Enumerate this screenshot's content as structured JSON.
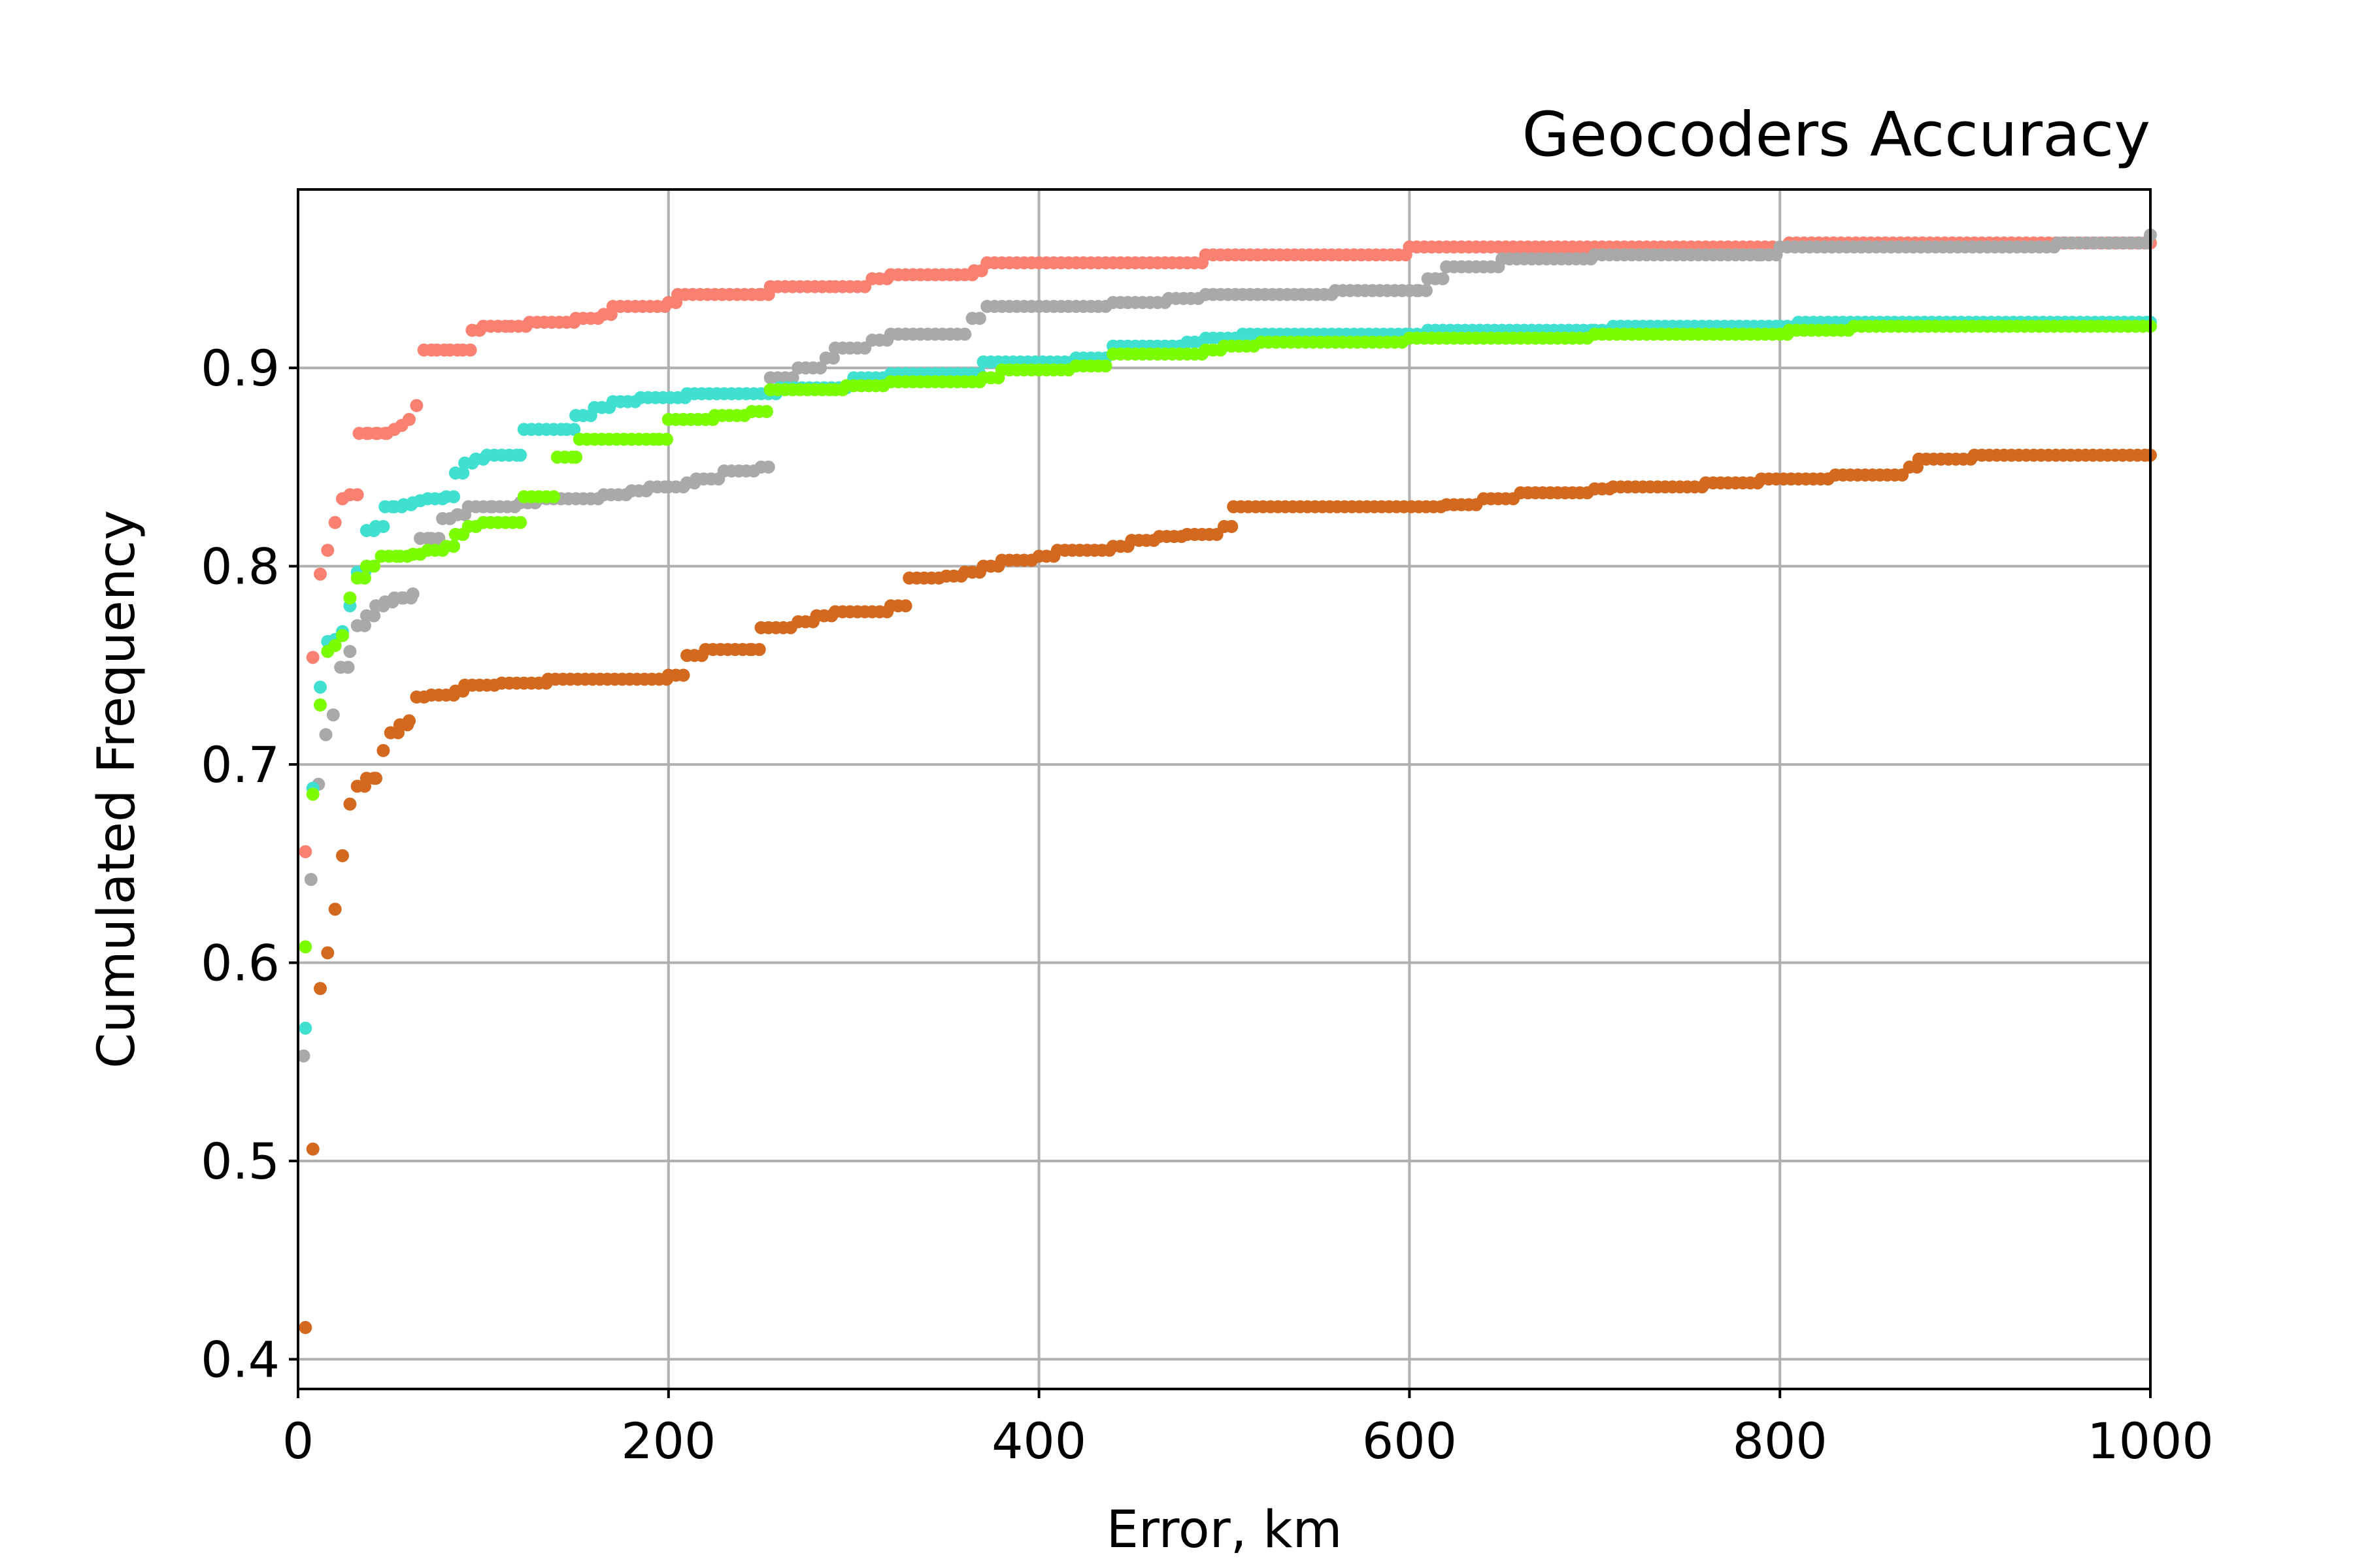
{
  "chart_data": {
    "type": "scatter",
    "title": "Geocoders Accuracy",
    "xlabel": "Error, km",
    "ylabel": "Cumulated Frequency",
    "xlim": [
      0,
      1000
    ],
    "ylim": [
      0.385,
      0.99
    ],
    "xticks": [
      0,
      200,
      400,
      600,
      800,
      1000
    ],
    "xtick_labels": [
      "0",
      "200",
      "400",
      "600",
      "800",
      "1000"
    ],
    "yticks": [
      0.4,
      0.5,
      0.6,
      0.7,
      0.8,
      0.9
    ],
    "ytick_labels": [
      "0.4",
      "0.5",
      "0.6",
      "0.7",
      "0.8",
      "0.9"
    ],
    "grid": true,
    "legend": false,
    "series": [
      {
        "color": "#fa8072",
        "points": [
          [
            4,
            0.656
          ],
          [
            8,
            0.754
          ],
          [
            12,
            0.796
          ],
          [
            16,
            0.808
          ],
          [
            20,
            0.822
          ],
          [
            24,
            0.834
          ],
          [
            28,
            0.836
          ],
          [
            33,
            0.867
          ],
          [
            38,
            0.867
          ],
          [
            43,
            0.867
          ],
          [
            48,
            0.867
          ],
          [
            52,
            0.869
          ],
          [
            56,
            0.871
          ],
          [
            60,
            0.874
          ],
          [
            64,
            0.881
          ],
          [
            68,
            0.909
          ],
          [
            75,
            0.909
          ],
          [
            82,
            0.909
          ],
          [
            89,
            0.909
          ],
          [
            94,
            0.919
          ],
          [
            100,
            0.921
          ],
          [
            115,
            0.921
          ],
          [
            125,
            0.923
          ],
          [
            145,
            0.923
          ],
          [
            150,
            0.925
          ],
          [
            165,
            0.927
          ],
          [
            170,
            0.931
          ],
          [
            190,
            0.931
          ],
          [
            200,
            0.933
          ],
          [
            205,
            0.937
          ],
          [
            250,
            0.937
          ],
          [
            255,
            0.941
          ],
          [
            290,
            0.941
          ],
          [
            310,
            0.945
          ],
          [
            320,
            0.947
          ],
          [
            365,
            0.949
          ],
          [
            372,
            0.953
          ],
          [
            480,
            0.953
          ],
          [
            490,
            0.957
          ],
          [
            590,
            0.957
          ],
          [
            600,
            0.961
          ],
          [
            800,
            0.961
          ],
          [
            805,
            0.963
          ],
          [
            1000,
            0.963
          ]
        ]
      },
      {
        "color": "#a9a9a9",
        "points": [
          [
            3,
            0.553
          ],
          [
            7,
            0.642
          ],
          [
            11,
            0.69
          ],
          [
            15,
            0.715
          ],
          [
            19,
            0.725
          ],
          [
            23,
            0.749
          ],
          [
            28,
            0.757
          ],
          [
            32,
            0.77
          ],
          [
            37,
            0.775
          ],
          [
            42,
            0.78
          ],
          [
            47,
            0.782
          ],
          [
            52,
            0.784
          ],
          [
            57,
            0.784
          ],
          [
            62,
            0.786
          ],
          [
            66,
            0.814
          ],
          [
            72,
            0.814
          ],
          [
            78,
            0.824
          ],
          [
            86,
            0.826
          ],
          [
            92,
            0.83
          ],
          [
            105,
            0.83
          ],
          [
            120,
            0.832
          ],
          [
            130,
            0.834
          ],
          [
            150,
            0.834
          ],
          [
            165,
            0.836
          ],
          [
            180,
            0.838
          ],
          [
            190,
            0.84
          ],
          [
            200,
            0.84
          ],
          [
            210,
            0.842
          ],
          [
            215,
            0.844
          ],
          [
            230,
            0.848
          ],
          [
            250,
            0.85
          ],
          [
            255,
            0.895
          ],
          [
            270,
            0.9
          ],
          [
            285,
            0.905
          ],
          [
            290,
            0.91
          ],
          [
            310,
            0.914
          ],
          [
            320,
            0.917
          ],
          [
            360,
            0.917
          ],
          [
            364,
            0.925
          ],
          [
            372,
            0.931
          ],
          [
            440,
            0.933
          ],
          [
            470,
            0.935
          ],
          [
            490,
            0.937
          ],
          [
            530,
            0.937
          ],
          [
            560,
            0.939
          ],
          [
            605,
            0.939
          ],
          [
            610,
            0.945
          ],
          [
            620,
            0.951
          ],
          [
            650,
            0.955
          ],
          [
            700,
            0.957
          ],
          [
            790,
            0.957
          ],
          [
            800,
            0.961
          ],
          [
            950,
            0.963
          ],
          [
            1000,
            0.967
          ]
        ]
      },
      {
        "color": "#40e0d0",
        "points": [
          [
            4,
            0.567
          ],
          [
            8,
            0.688
          ],
          [
            12,
            0.739
          ],
          [
            16,
            0.762
          ],
          [
            20,
            0.763
          ],
          [
            24,
            0.767
          ],
          [
            28,
            0.78
          ],
          [
            32,
            0.797
          ],
          [
            37,
            0.818
          ],
          [
            42,
            0.82
          ],
          [
            47,
            0.83
          ],
          [
            52,
            0.83
          ],
          [
            57,
            0.831
          ],
          [
            62,
            0.832
          ],
          [
            66,
            0.833
          ],
          [
            70,
            0.834
          ],
          [
            80,
            0.835
          ],
          [
            85,
            0.847
          ],
          [
            90,
            0.852
          ],
          [
            96,
            0.854
          ],
          [
            102,
            0.856
          ],
          [
            120,
            0.856
          ],
          [
            122,
            0.869
          ],
          [
            145,
            0.869
          ],
          [
            150,
            0.876
          ],
          [
            160,
            0.88
          ],
          [
            170,
            0.883
          ],
          [
            185,
            0.885
          ],
          [
            210,
            0.887
          ],
          [
            250,
            0.887
          ],
          [
            260,
            0.89
          ],
          [
            300,
            0.895
          ],
          [
            320,
            0.897
          ],
          [
            370,
            0.903
          ],
          [
            420,
            0.905
          ],
          [
            440,
            0.911
          ],
          [
            480,
            0.913
          ],
          [
            490,
            0.915
          ],
          [
            510,
            0.917
          ],
          [
            600,
            0.917
          ],
          [
            610,
            0.919
          ],
          [
            700,
            0.919
          ],
          [
            710,
            0.921
          ],
          [
            800,
            0.921
          ],
          [
            810,
            0.923
          ],
          [
            1000,
            0.923
          ]
        ]
      },
      {
        "color": "#7cfc00",
        "points": [
          [
            4,
            0.608
          ],
          [
            8,
            0.685
          ],
          [
            12,
            0.73
          ],
          [
            16,
            0.757
          ],
          [
            20,
            0.76
          ],
          [
            24,
            0.765
          ],
          [
            28,
            0.784
          ],
          [
            32,
            0.794
          ],
          [
            37,
            0.8
          ],
          [
            45,
            0.805
          ],
          [
            55,
            0.805
          ],
          [
            62,
            0.806
          ],
          [
            70,
            0.808
          ],
          [
            80,
            0.81
          ],
          [
            85,
            0.816
          ],
          [
            92,
            0.82
          ],
          [
            100,
            0.822
          ],
          [
            120,
            0.822
          ],
          [
            122,
            0.835
          ],
          [
            138,
            0.835
          ],
          [
            140,
            0.855
          ],
          [
            150,
            0.855
          ],
          [
            152,
            0.864
          ],
          [
            195,
            0.864
          ],
          [
            200,
            0.874
          ],
          [
            220,
            0.874
          ],
          [
            225,
            0.876
          ],
          [
            245,
            0.878
          ],
          [
            255,
            0.889
          ],
          [
            290,
            0.889
          ],
          [
            296,
            0.891
          ],
          [
            320,
            0.893
          ],
          [
            370,
            0.895
          ],
          [
            380,
            0.899
          ],
          [
            420,
            0.901
          ],
          [
            440,
            0.907
          ],
          [
            490,
            0.909
          ],
          [
            500,
            0.911
          ],
          [
            520,
            0.913
          ],
          [
            580,
            0.913
          ],
          [
            600,
            0.915
          ],
          [
            700,
            0.917
          ],
          [
            800,
            0.917
          ],
          [
            805,
            0.919
          ],
          [
            840,
            0.921
          ],
          [
            1000,
            0.921
          ]
        ]
      },
      {
        "color": "#d2691e",
        "points": [
          [
            4,
            0.416
          ],
          [
            8,
            0.506
          ],
          [
            12,
            0.587
          ],
          [
            16,
            0.605
          ],
          [
            20,
            0.627
          ],
          [
            24,
            0.654
          ],
          [
            28,
            0.68
          ],
          [
            32,
            0.689
          ],
          [
            37,
            0.693
          ],
          [
            42,
            0.693
          ],
          [
            46,
            0.707
          ],
          [
            50,
            0.716
          ],
          [
            55,
            0.72
          ],
          [
            60,
            0.722
          ],
          [
            64,
            0.734
          ],
          [
            72,
            0.735
          ],
          [
            85,
            0.737
          ],
          [
            90,
            0.74
          ],
          [
            110,
            0.741
          ],
          [
            130,
            0.741
          ],
          [
            135,
            0.743
          ],
          [
            200,
            0.745
          ],
          [
            210,
            0.755
          ],
          [
            220,
            0.758
          ],
          [
            245,
            0.758
          ],
          [
            250,
            0.769
          ],
          [
            270,
            0.772
          ],
          [
            280,
            0.775
          ],
          [
            290,
            0.777
          ],
          [
            320,
            0.78
          ],
          [
            330,
            0.794
          ],
          [
            350,
            0.795
          ],
          [
            360,
            0.797
          ],
          [
            370,
            0.8
          ],
          [
            380,
            0.803
          ],
          [
            400,
            0.805
          ],
          [
            410,
            0.808
          ],
          [
            440,
            0.81
          ],
          [
            450,
            0.813
          ],
          [
            465,
            0.815
          ],
          [
            480,
            0.816
          ],
          [
            500,
            0.82
          ],
          [
            505,
            0.83
          ],
          [
            620,
            0.831
          ],
          [
            640,
            0.834
          ],
          [
            660,
            0.837
          ],
          [
            700,
            0.839
          ],
          [
            710,
            0.84
          ],
          [
            760,
            0.842
          ],
          [
            790,
            0.844
          ],
          [
            830,
            0.846
          ],
          [
            870,
            0.85
          ],
          [
            875,
            0.854
          ],
          [
            905,
            0.856
          ],
          [
            1000,
            0.856
          ]
        ]
      }
    ]
  }
}
